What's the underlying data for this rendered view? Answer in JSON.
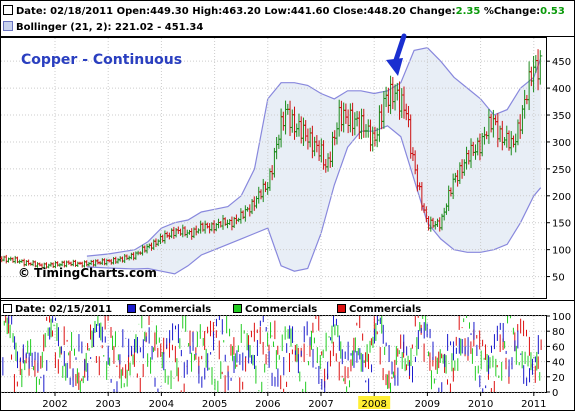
{
  "header": {
    "date_label": "Date:",
    "date": "02/18/2011",
    "open_label": "Open:",
    "open": "449.30",
    "high_label": "High:",
    "high": "463.20",
    "low_label": "Low:",
    "low": "441.60",
    "close_label": "Close:",
    "close": "448.20",
    "change_label": "Change:",
    "change": "2.35",
    "pct_label": "%Change:",
    "pct": "0.53",
    "bollinger_label": "Bollinger (21, 2):",
    "bollinger_range": "221.02 - 451.34"
  },
  "title": "Copper - Continuous",
  "copyright": "© TimingCharts.com",
  "lower_header": {
    "date_label": "Date:",
    "date": "02/15/2011",
    "legend": [
      {
        "label": "Commercials",
        "color": "#1a1acc"
      },
      {
        "label": "Commercials",
        "color": "#22cc22"
      },
      {
        "label": "Commercials",
        "color": "#dd1111"
      }
    ]
  },
  "colors": {
    "up": "#1a8a1a",
    "down": "#cc1111",
    "band_line": "#8888dd",
    "band_fill": "#e8eef6",
    "arrow": "#1a2fd0",
    "highlight": "#ffee33"
  },
  "chart_data": [
    {
      "type": "line",
      "title": "Copper - Continuous",
      "subtitle": "Bollinger (21, 2): 221.02 - 451.34",
      "x_ticks": [
        "2002",
        "2003",
        "2004",
        "2005",
        "2006",
        "2007",
        "2008",
        "2009",
        "2010",
        "2011"
      ],
      "highlighted_tick": "2008",
      "y_ticks": [
        50,
        100,
        150,
        200,
        250,
        300,
        350,
        400,
        450
      ],
      "ylim": [
        15,
        470
      ],
      "grid": true,
      "series": [
        {
          "name": "Close",
          "x": [
            2001.0,
            2001.25,
            2001.5,
            2001.75,
            2002.0,
            2002.25,
            2002.5,
            2002.75,
            2003.0,
            2003.25,
            2003.5,
            2003.75,
            2004.0,
            2004.25,
            2004.5,
            2004.75,
            2005.0,
            2005.25,
            2005.5,
            2005.75,
            2006.0,
            2006.2,
            2006.35,
            2006.5,
            2006.75,
            2007.0,
            2007.1,
            2007.35,
            2007.6,
            2007.8,
            2008.0,
            2008.2,
            2008.4,
            2008.6,
            2008.7,
            2008.85,
            2009.0,
            2009.25,
            2009.5,
            2009.75,
            2010.0,
            2010.25,
            2010.4,
            2010.6,
            2010.85,
            2011.0,
            2011.13
          ],
          "y": [
            84,
            80,
            75,
            70,
            72,
            75,
            73,
            76,
            78,
            82,
            90,
            105,
            120,
            135,
            130,
            140,
            145,
            150,
            160,
            190,
            220,
            310,
            360,
            330,
            310,
            280,
            250,
            350,
            340,
            330,
            300,
            380,
            390,
            360,
            280,
            210,
            145,
            150,
            230,
            270,
            300,
            340,
            310,
            290,
            380,
            440,
            448
          ]
        },
        {
          "name": "Upper band",
          "x": [
            2002.6,
            2003.0,
            2003.5,
            2003.75,
            2004.0,
            2004.25,
            2004.5,
            2004.75,
            2005.0,
            2005.25,
            2005.5,
            2005.75,
            2006.0,
            2006.25,
            2006.5,
            2006.75,
            2007.0,
            2007.25,
            2007.5,
            2007.75,
            2008.0,
            2008.25,
            2008.5,
            2008.75,
            2009.0,
            2009.25,
            2009.5,
            2009.75,
            2010.0,
            2010.25,
            2010.5,
            2010.75,
            2011.0,
            2011.13
          ],
          "y": [
            88,
            92,
            100,
            115,
            140,
            150,
            155,
            170,
            175,
            180,
            200,
            250,
            380,
            410,
            410,
            405,
            390,
            380,
            395,
            395,
            390,
            395,
            410,
            470,
            475,
            450,
            420,
            400,
            380,
            350,
            360,
            400,
            420,
            455
          ]
        },
        {
          "name": "Lower band",
          "x": [
            2002.6,
            2003.0,
            2003.5,
            2003.75,
            2004.0,
            2004.25,
            2004.5,
            2004.75,
            2005.0,
            2005.25,
            2005.5,
            2005.75,
            2006.0,
            2006.25,
            2006.5,
            2006.75,
            2007.0,
            2007.25,
            2007.5,
            2007.75,
            2008.0,
            2008.25,
            2008.5,
            2008.75,
            2009.0,
            2009.25,
            2009.5,
            2009.75,
            2010.0,
            2010.25,
            2010.5,
            2010.75,
            2011.0,
            2011.13
          ],
          "y": [
            68,
            66,
            64,
            65,
            60,
            55,
            70,
            90,
            100,
            110,
            120,
            130,
            140,
            70,
            60,
            65,
            130,
            220,
            290,
            320,
            320,
            330,
            310,
            230,
            150,
            120,
            100,
            95,
            95,
            100,
            110,
            150,
            200,
            215
          ]
        }
      ]
    },
    {
      "type": "line",
      "x_ticks": [
        "2002",
        "2003",
        "2004",
        "2005",
        "2006",
        "2007",
        "2008",
        "2009",
        "2010",
        "2011"
      ],
      "y_ticks": [
        0,
        20,
        40,
        60,
        80,
        100
      ],
      "ylim": [
        0,
        100
      ],
      "grid": true,
      "series": [
        {
          "name": "Commercials",
          "color": "#1a1acc",
          "x": [
            2001.0,
            2011.1
          ],
          "y": [
            0,
            100
          ]
        },
        {
          "name": "Commercials",
          "color": "#22cc22",
          "x": [
            2001.0,
            2011.1
          ],
          "y": [
            0,
            100
          ]
        },
        {
          "name": "Commercials",
          "color": "#dd1111",
          "x": [
            2001.0,
            2011.1
          ],
          "y": [
            0,
            100
          ]
        }
      ]
    }
  ]
}
